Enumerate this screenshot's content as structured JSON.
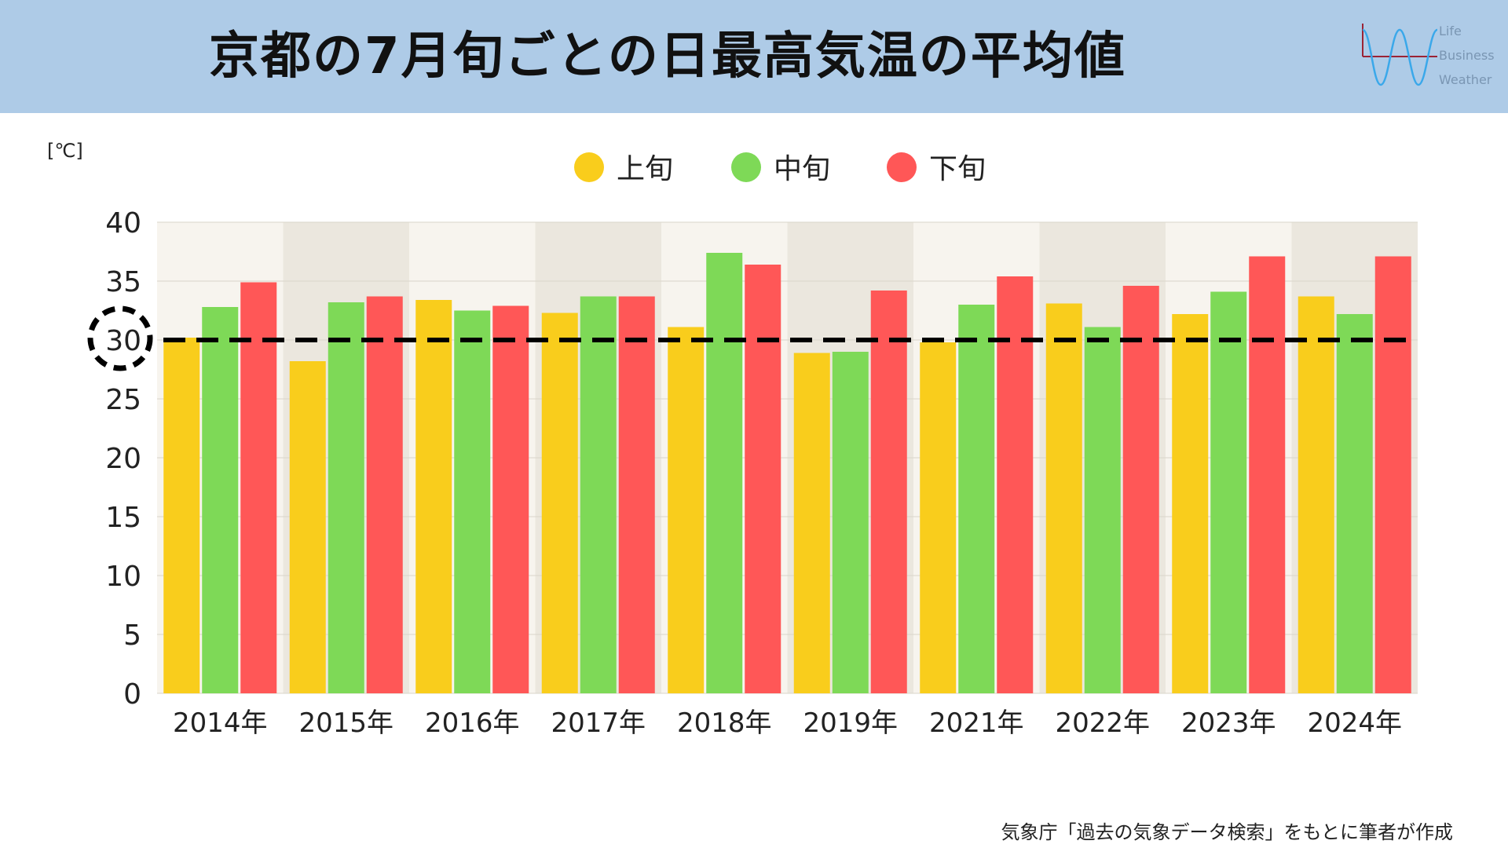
{
  "header": {
    "title": "京都の7月旬ごとの日最高気温の平均値",
    "logo_lines": [
      "Life",
      "Business",
      "Weather"
    ]
  },
  "unit_label": "[℃]",
  "source_note": "気象庁「過去の気象データ検索」をもとに筆者が作成",
  "colors": {
    "header_bg": "#aecbe7",
    "early": "#f9cd1c",
    "mid": "#7ed957",
    "late": "#ff5757",
    "band_light": "#f7f4ee",
    "band_dark": "#ebe7de"
  },
  "chart_data": {
    "type": "bar",
    "categories": [
      "2014年",
      "2015年",
      "2016年",
      "2017年",
      "2018年",
      "2019年",
      "2021年",
      "2022年",
      "2023年",
      "2024年"
    ],
    "series": [
      {
        "name": "上旬",
        "values": [
          30.2,
          28.2,
          33.4,
          32.3,
          31.1,
          28.9,
          29.8,
          33.1,
          32.2,
          33.7
        ]
      },
      {
        "name": "中旬",
        "values": [
          32.8,
          33.2,
          32.5,
          33.7,
          37.4,
          29.0,
          33.0,
          31.1,
          34.1,
          32.2
        ]
      },
      {
        "name": "下旬",
        "values": [
          34.9,
          33.7,
          32.9,
          33.7,
          36.4,
          34.2,
          35.4,
          34.6,
          37.1,
          37.1
        ]
      }
    ],
    "ylim": [
      0,
      40
    ],
    "yticks": [
      "0",
      "5",
      "10",
      "15",
      "20",
      "25",
      "30",
      "35",
      "40"
    ],
    "reference_line": 30,
    "highlighted_tick": "30",
    "legend": {
      "placement": "top-center"
    },
    "grid": true
  }
}
